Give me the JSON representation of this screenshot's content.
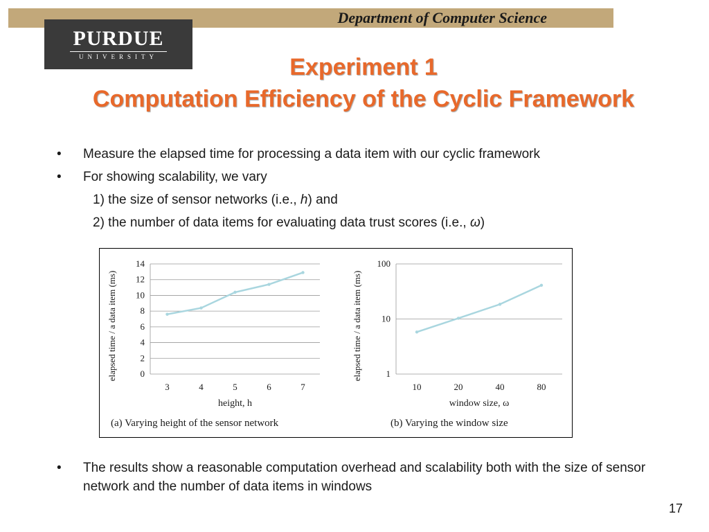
{
  "header": {
    "department": "Department of Computer Science"
  },
  "logo": {
    "name": "PURDUE",
    "sub": "UNIVERSITY"
  },
  "title": {
    "line1": "Experiment 1",
    "line2": "Computation Efficiency of the Cyclic Framework"
  },
  "bullets": {
    "b1": "Measure the elapsed time for processing a data item with our cyclic framework",
    "b2": "For showing scalability, we vary",
    "sub1_pre": "1) the size of sensor networks (i.e., ",
    "sub1_var": "h",
    "sub1_post": ") and",
    "sub2_pre": "2) the number of data items for evaluating data trust scores (i.e., ",
    "sub2_var": "ω",
    "sub2_post": ")",
    "b3": "The results show a reasonable  computation overhead and scalability both with the size of sensor network and the number of data items in windows",
    "symbol": "•"
  },
  "page_number": "17",
  "colors": {
    "band": "#c2a87a",
    "title": "#e8692b",
    "line": "#a9d6df",
    "grid": "#999999"
  },
  "chart_data": [
    {
      "type": "line",
      "categories": [
        "3",
        "4",
        "5",
        "6",
        "7"
      ],
      "values": [
        7.6,
        8.4,
        10.4,
        11.4,
        12.9
      ],
      "xlabel": "height, h",
      "ylabel": "elapsed time / a data item (ms)",
      "ylim": [
        0,
        14
      ],
      "yticks": [
        "0",
        "2",
        "4",
        "6",
        "8",
        "10",
        "12",
        "14"
      ],
      "caption": "(a) Varying height of the sensor network",
      "grid": true,
      "yscale": "linear"
    },
    {
      "type": "line",
      "categories": [
        "10",
        "20",
        "40",
        "80"
      ],
      "values": [
        5.8,
        10.3,
        18.5,
        41
      ],
      "xlabel": "window size, ω",
      "ylabel": "elapsed time / a data item (ms)",
      "ylim": [
        1,
        100
      ],
      "yticks": [
        "1",
        "10",
        "100"
      ],
      "caption": "(b) Varying the window size",
      "grid": true,
      "yscale": "log"
    }
  ]
}
